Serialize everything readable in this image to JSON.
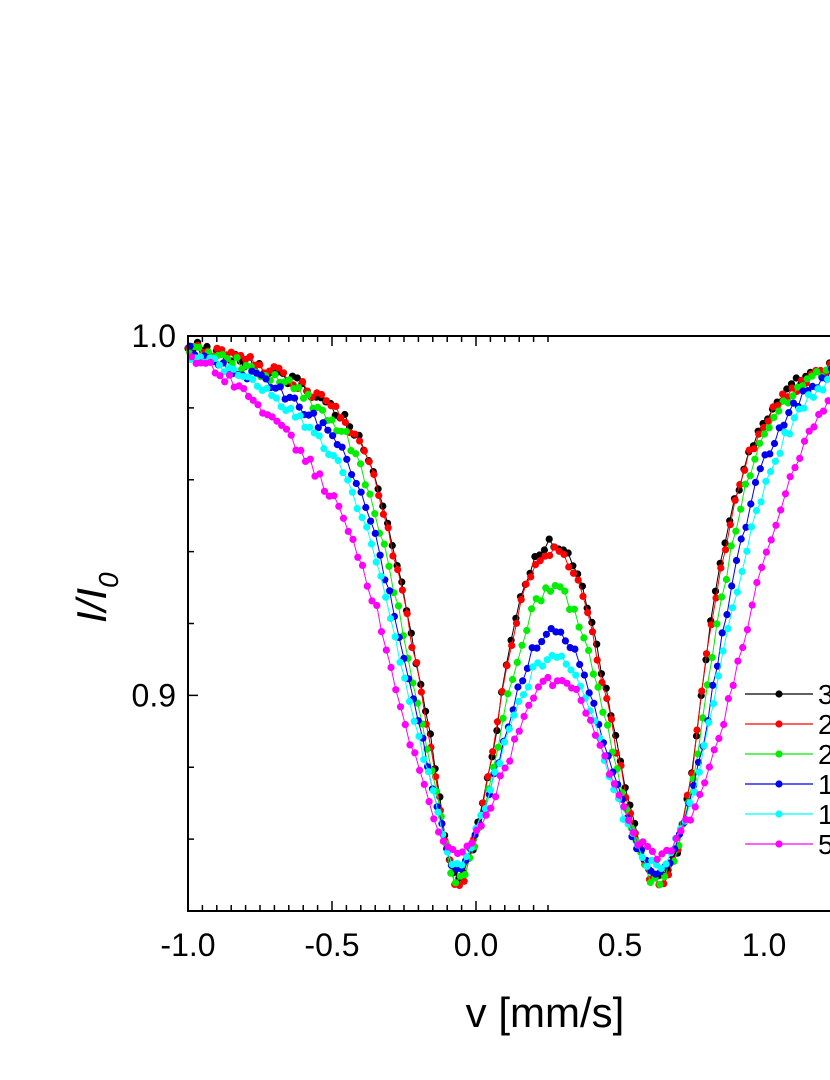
{
  "chart_data": {
    "type": "scatter",
    "xlabel": "v [mm/s]",
    "ylabel": {
      "main": "I/I",
      "sub": "0"
    },
    "xlim": [
      -1.0,
      1.25
    ],
    "ylim": [
      0.84,
      1.0
    ],
    "xticks": [
      -1.0,
      -0.5,
      0.0,
      0.5,
      1.0
    ],
    "xtick_labels": [
      "-1.0",
      "-0.5",
      "0.0",
      "0.5",
      "1.0"
    ],
    "yticks": [
      0.9,
      1.0
    ],
    "ytick_labels": [
      "0.9",
      "1.0"
    ],
    "grid": false,
    "legend_position": "right",
    "series": [
      {
        "name": "3",
        "color": "#000000",
        "shift": 0,
        "x0": -1.0,
        "dx": 0.0165,
        "points": [
          [
            -1.0,
            0.998
          ],
          [
            -0.9,
            0.995
          ],
          [
            -0.8,
            0.993
          ],
          [
            -0.7,
            0.99
          ],
          [
            -0.6,
            0.986
          ],
          [
            -0.5,
            0.98
          ],
          [
            -0.45,
            0.977
          ],
          [
            -0.4,
            0.97
          ],
          [
            -0.35,
            0.962
          ],
          [
            -0.3,
            0.945
          ],
          [
            -0.25,
            0.928
          ],
          [
            -0.2,
            0.907
          ],
          [
            -0.15,
            0.885
          ],
          [
            -0.12,
            0.868
          ],
          [
            -0.1,
            0.858
          ],
          [
            -0.08,
            0.85
          ],
          [
            -0.06,
            0.848
          ],
          [
            -0.04,
            0.85
          ],
          [
            -0.02,
            0.855
          ],
          [
            0.0,
            0.862
          ],
          [
            0.05,
            0.88
          ],
          [
            0.1,
            0.905
          ],
          [
            0.15,
            0.925
          ],
          [
            0.2,
            0.937
          ],
          [
            0.25,
            0.942
          ],
          [
            0.3,
            0.941
          ],
          [
            0.35,
            0.935
          ],
          [
            0.4,
            0.921
          ],
          [
            0.45,
            0.902
          ],
          [
            0.5,
            0.882
          ],
          [
            0.55,
            0.863
          ],
          [
            0.6,
            0.851
          ],
          [
            0.63,
            0.848
          ],
          [
            0.66,
            0.85
          ],
          [
            0.7,
            0.857
          ],
          [
            0.75,
            0.879
          ],
          [
            0.8,
            0.912
          ],
          [
            0.85,
            0.938
          ],
          [
            0.9,
            0.955
          ],
          [
            0.95,
            0.968
          ],
          [
            1.0,
            0.976
          ],
          [
            1.05,
            0.982
          ],
          [
            1.1,
            0.986
          ],
          [
            1.15,
            0.989
          ],
          [
            1.25,
            0.993
          ]
        ]
      },
      {
        "name": "2",
        "color": "#ff0000",
        "shift": 1,
        "x0": -0.998,
        "dx": 0.0165,
        "points": [
          [
            -1.0,
            0.998
          ],
          [
            -0.9,
            0.995
          ],
          [
            -0.8,
            0.993
          ],
          [
            -0.7,
            0.99
          ],
          [
            -0.6,
            0.986
          ],
          [
            -0.5,
            0.98
          ],
          [
            -0.45,
            0.976
          ],
          [
            -0.4,
            0.969
          ],
          [
            -0.35,
            0.96
          ],
          [
            -0.3,
            0.944
          ],
          [
            -0.25,
            0.926
          ],
          [
            -0.2,
            0.905
          ],
          [
            -0.15,
            0.883
          ],
          [
            -0.12,
            0.866
          ],
          [
            -0.1,
            0.856
          ],
          [
            -0.08,
            0.849
          ],
          [
            -0.06,
            0.847
          ],
          [
            -0.04,
            0.849
          ],
          [
            -0.02,
            0.854
          ],
          [
            0.0,
            0.861
          ],
          [
            0.05,
            0.879
          ],
          [
            0.1,
            0.904
          ],
          [
            0.15,
            0.924
          ],
          [
            0.2,
            0.936
          ],
          [
            0.25,
            0.94
          ],
          [
            0.3,
            0.939
          ],
          [
            0.35,
            0.933
          ],
          [
            0.4,
            0.919
          ],
          [
            0.45,
            0.9
          ],
          [
            0.5,
            0.88
          ],
          [
            0.55,
            0.862
          ],
          [
            0.6,
            0.85
          ],
          [
            0.63,
            0.847
          ],
          [
            0.66,
            0.849
          ],
          [
            0.7,
            0.856
          ],
          [
            0.75,
            0.878
          ],
          [
            0.8,
            0.91
          ],
          [
            0.85,
            0.936
          ],
          [
            0.9,
            0.953
          ],
          [
            0.95,
            0.967
          ],
          [
            1.0,
            0.975
          ],
          [
            1.05,
            0.981
          ],
          [
            1.1,
            0.985
          ],
          [
            1.15,
            0.988
          ],
          [
            1.25,
            0.993
          ]
        ]
      },
      {
        "name": "2",
        "color": "#00ee00",
        "shift": -1,
        "x0": -0.995,
        "dx": 0.0165,
        "points": [
          [
            -1.0,
            0.997
          ],
          [
            -0.9,
            0.994
          ],
          [
            -0.8,
            0.992
          ],
          [
            -0.7,
            0.989
          ],
          [
            -0.6,
            0.984
          ],
          [
            -0.5,
            0.977
          ],
          [
            -0.45,
            0.972
          ],
          [
            -0.4,
            0.963
          ],
          [
            -0.35,
            0.952
          ],
          [
            -0.3,
            0.935
          ],
          [
            -0.25,
            0.917
          ],
          [
            -0.2,
            0.897
          ],
          [
            -0.15,
            0.878
          ],
          [
            -0.12,
            0.865
          ],
          [
            -0.1,
            0.856
          ],
          [
            -0.08,
            0.85
          ],
          [
            -0.06,
            0.848
          ],
          [
            -0.04,
            0.85
          ],
          [
            -0.02,
            0.855
          ],
          [
            0.0,
            0.861
          ],
          [
            0.05,
            0.876
          ],
          [
            0.1,
            0.896
          ],
          [
            0.15,
            0.913
          ],
          [
            0.2,
            0.925
          ],
          [
            0.25,
            0.93
          ],
          [
            0.3,
            0.929
          ],
          [
            0.35,
            0.922
          ],
          [
            0.4,
            0.909
          ],
          [
            0.45,
            0.893
          ],
          [
            0.5,
            0.876
          ],
          [
            0.55,
            0.861
          ],
          [
            0.6,
            0.85
          ],
          [
            0.63,
            0.848
          ],
          [
            0.66,
            0.85
          ],
          [
            0.7,
            0.858
          ],
          [
            0.75,
            0.874
          ],
          [
            0.8,
            0.9
          ],
          [
            0.85,
            0.926
          ],
          [
            0.9,
            0.946
          ],
          [
            0.95,
            0.962
          ],
          [
            1.0,
            0.972
          ],
          [
            1.05,
            0.979
          ],
          [
            1.1,
            0.984
          ],
          [
            1.15,
            0.988
          ],
          [
            1.25,
            0.993
          ]
        ]
      },
      {
        "name": "1",
        "color": "#0000ee",
        "shift": -1,
        "x0": -0.993,
        "dx": 0.0165,
        "points": [
          [
            -1.0,
            0.996
          ],
          [
            -0.9,
            0.993
          ],
          [
            -0.8,
            0.99
          ],
          [
            -0.7,
            0.986
          ],
          [
            -0.6,
            0.98
          ],
          [
            -0.5,
            0.972
          ],
          [
            -0.45,
            0.966
          ],
          [
            -0.4,
            0.957
          ],
          [
            -0.35,
            0.945
          ],
          [
            -0.3,
            0.928
          ],
          [
            -0.25,
            0.91
          ],
          [
            -0.2,
            0.892
          ],
          [
            -0.15,
            0.875
          ],
          [
            -0.12,
            0.865
          ],
          [
            -0.1,
            0.858
          ],
          [
            -0.08,
            0.853
          ],
          [
            -0.06,
            0.851
          ],
          [
            -0.04,
            0.853
          ],
          [
            -0.02,
            0.857
          ],
          [
            0.0,
            0.862
          ],
          [
            0.05,
            0.874
          ],
          [
            0.1,
            0.889
          ],
          [
            0.15,
            0.903
          ],
          [
            0.2,
            0.913
          ],
          [
            0.25,
            0.918
          ],
          [
            0.3,
            0.917
          ],
          [
            0.35,
            0.911
          ],
          [
            0.4,
            0.9
          ],
          [
            0.45,
            0.886
          ],
          [
            0.5,
            0.872
          ],
          [
            0.55,
            0.86
          ],
          [
            0.6,
            0.853
          ],
          [
            0.63,
            0.851
          ],
          [
            0.66,
            0.853
          ],
          [
            0.7,
            0.859
          ],
          [
            0.75,
            0.872
          ],
          [
            0.8,
            0.892
          ],
          [
            0.85,
            0.914
          ],
          [
            0.9,
            0.935
          ],
          [
            0.95,
            0.953
          ],
          [
            1.0,
            0.965
          ],
          [
            1.05,
            0.974
          ],
          [
            1.1,
            0.98
          ],
          [
            1.15,
            0.985
          ],
          [
            1.25,
            0.991
          ]
        ]
      },
      {
        "name": "1",
        "color": "#00ffff",
        "shift": 0,
        "x0": -0.99,
        "dx": 0.0165,
        "points": [
          [
            -1.0,
            0.995
          ],
          [
            -0.9,
            0.992
          ],
          [
            -0.8,
            0.988
          ],
          [
            -0.7,
            0.983
          ],
          [
            -0.6,
            0.976
          ],
          [
            -0.5,
            0.967
          ],
          [
            -0.45,
            0.96
          ],
          [
            -0.4,
            0.951
          ],
          [
            -0.35,
            0.939
          ],
          [
            -0.3,
            0.922
          ],
          [
            -0.25,
            0.905
          ],
          [
            -0.2,
            0.888
          ],
          [
            -0.15,
            0.873
          ],
          [
            -0.12,
            0.864
          ],
          [
            -0.1,
            0.858
          ],
          [
            -0.08,
            0.854
          ],
          [
            -0.06,
            0.853
          ],
          [
            -0.04,
            0.854
          ],
          [
            -0.02,
            0.858
          ],
          [
            0.0,
            0.862
          ],
          [
            0.05,
            0.873
          ],
          [
            0.1,
            0.886
          ],
          [
            0.15,
            0.898
          ],
          [
            0.2,
            0.907
          ],
          [
            0.25,
            0.911
          ],
          [
            0.3,
            0.91
          ],
          [
            0.35,
            0.905
          ],
          [
            0.4,
            0.895
          ],
          [
            0.45,
            0.882
          ],
          [
            0.5,
            0.869
          ],
          [
            0.55,
            0.859
          ],
          [
            0.6,
            0.853
          ],
          [
            0.63,
            0.852
          ],
          [
            0.66,
            0.854
          ],
          [
            0.7,
            0.86
          ],
          [
            0.75,
            0.871
          ],
          [
            0.8,
            0.888
          ],
          [
            0.85,
            0.908
          ],
          [
            0.9,
            0.927
          ],
          [
            0.95,
            0.945
          ],
          [
            1.0,
            0.958
          ],
          [
            1.05,
            0.968
          ],
          [
            1.1,
            0.976
          ],
          [
            1.15,
            0.982
          ],
          [
            1.25,
            0.989
          ]
        ]
      },
      {
        "name": "5",
        "color": "#ff00ff",
        "shift": 1,
        "x0": -0.988,
        "dx": 0.0165,
        "points": [
          [
            -1.0,
            0.994
          ],
          [
            -0.9,
            0.99
          ],
          [
            -0.8,
            0.984
          ],
          [
            -0.7,
            0.977
          ],
          [
            -0.6,
            0.967
          ],
          [
            -0.5,
            0.955
          ],
          [
            -0.45,
            0.947
          ],
          [
            -0.4,
            0.937
          ],
          [
            -0.35,
            0.925
          ],
          [
            -0.3,
            0.909
          ],
          [
            -0.25,
            0.893
          ],
          [
            -0.2,
            0.879
          ],
          [
            -0.15,
            0.867
          ],
          [
            -0.12,
            0.861
          ],
          [
            -0.1,
            0.858
          ],
          [
            -0.08,
            0.856
          ],
          [
            -0.06,
            0.856
          ],
          [
            -0.04,
            0.857
          ],
          [
            -0.02,
            0.859
          ],
          [
            0.0,
            0.862
          ],
          [
            0.05,
            0.869
          ],
          [
            0.1,
            0.879
          ],
          [
            0.15,
            0.89
          ],
          [
            0.2,
            0.899
          ],
          [
            0.25,
            0.904
          ],
          [
            0.3,
            0.904
          ],
          [
            0.35,
            0.9
          ],
          [
            0.4,
            0.892
          ],
          [
            0.45,
            0.881
          ],
          [
            0.5,
            0.87
          ],
          [
            0.55,
            0.861
          ],
          [
            0.6,
            0.856
          ],
          [
            0.63,
            0.855
          ],
          [
            0.66,
            0.856
          ],
          [
            0.7,
            0.86
          ],
          [
            0.75,
            0.867
          ],
          [
            0.8,
            0.877
          ],
          [
            0.85,
            0.89
          ],
          [
            0.9,
            0.905
          ],
          [
            0.95,
            0.922
          ],
          [
            1.0,
            0.937
          ],
          [
            1.05,
            0.951
          ],
          [
            1.1,
            0.962
          ],
          [
            1.15,
            0.972
          ],
          [
            1.25,
            0.984
          ]
        ]
      }
    ]
  }
}
